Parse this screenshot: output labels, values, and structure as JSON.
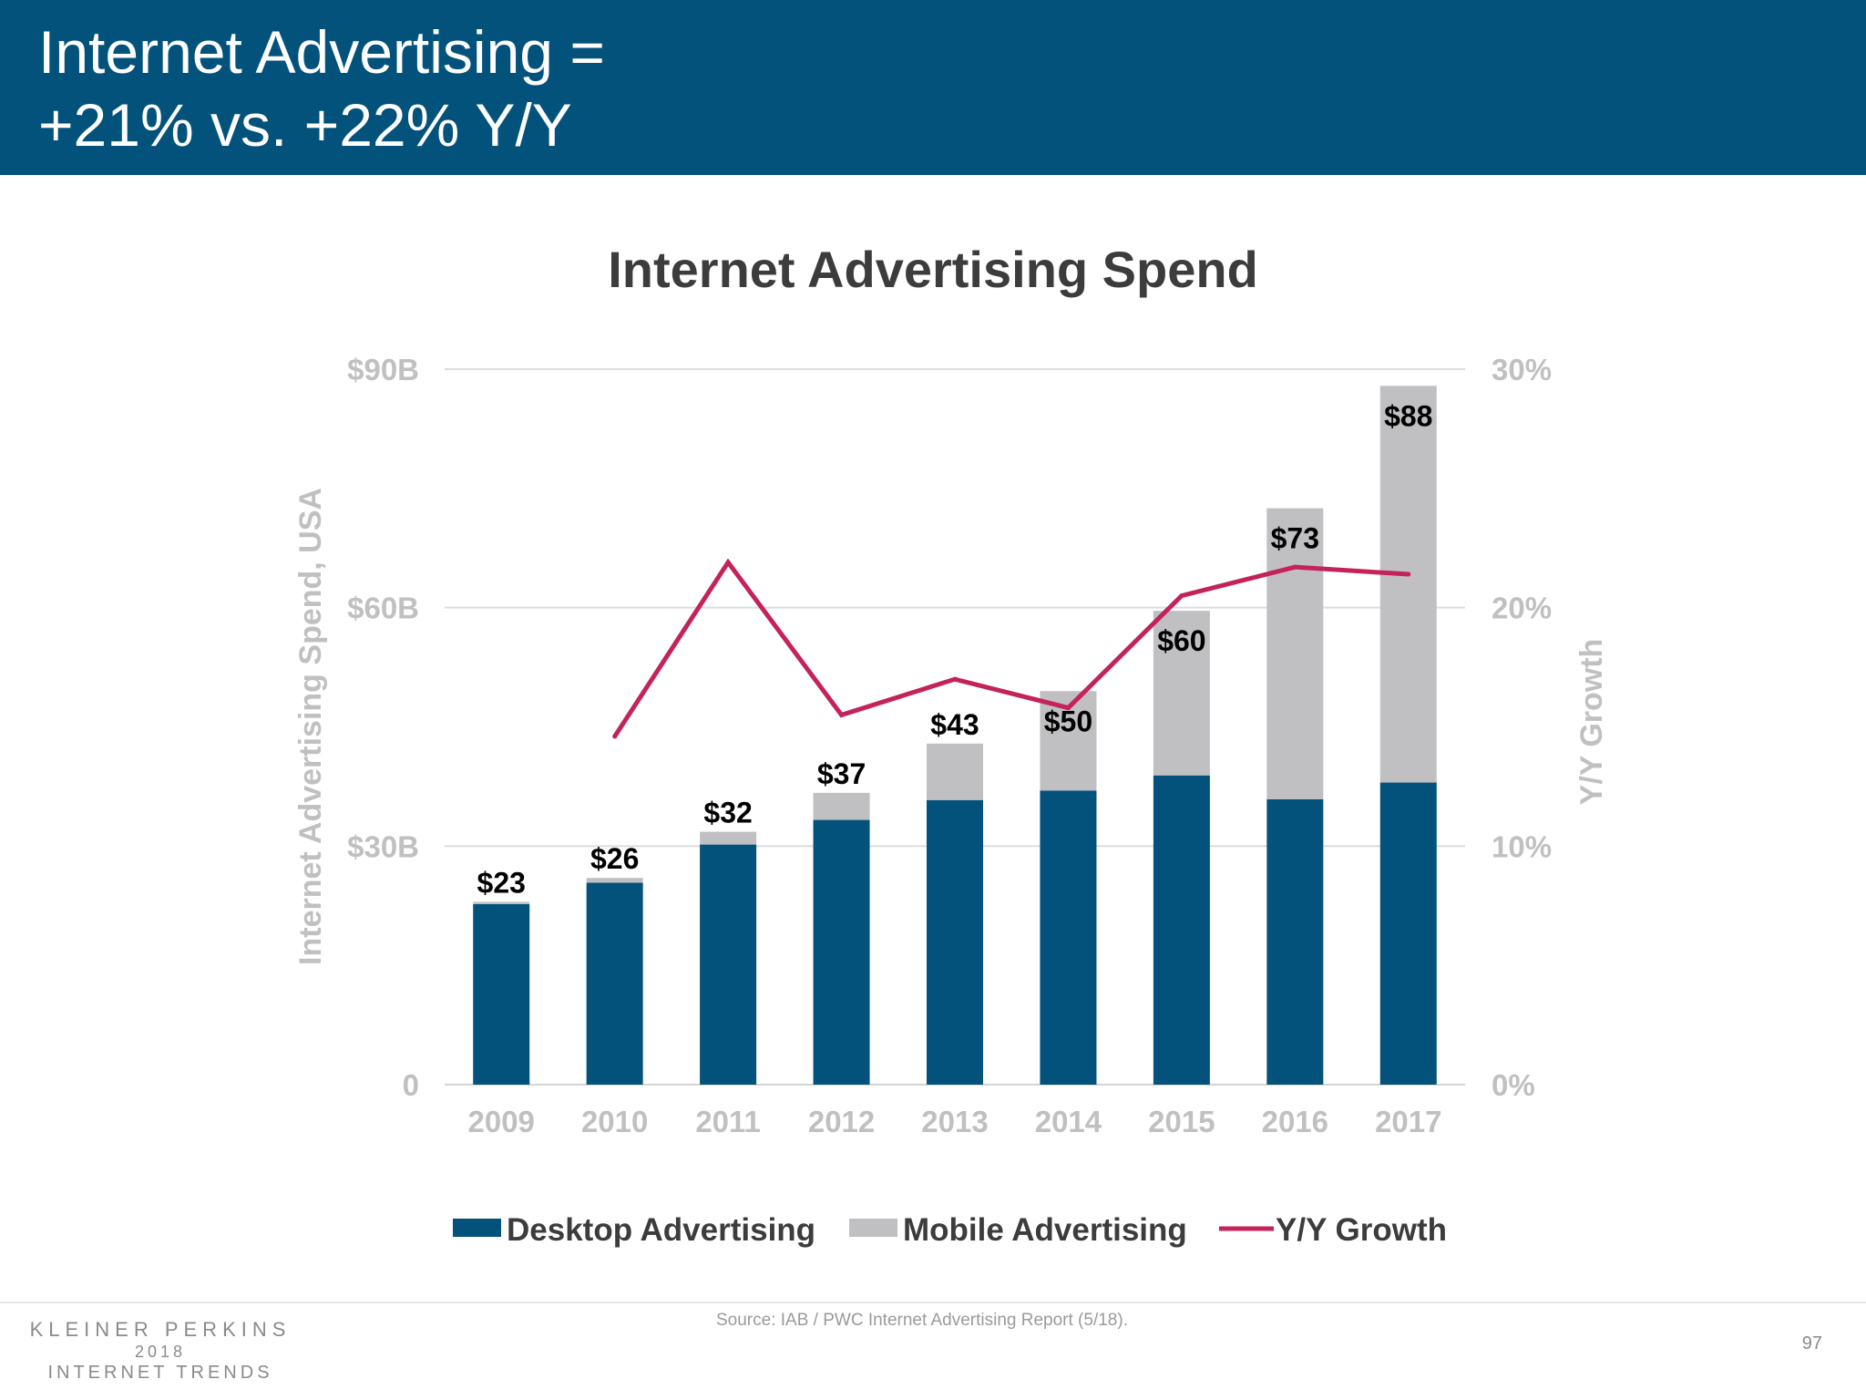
{
  "header": {
    "title_line1": "Internet Advertising =",
    "title_line2": "+21% vs. +22% Y/Y"
  },
  "colors": {
    "header_bg": "#02527c",
    "desktop": "#02527c",
    "mobile": "#c0bfc1",
    "growth_line": "#c4225a"
  },
  "chart_data": {
    "type": "bar",
    "stacked": true,
    "title": "Internet Advertising Spend",
    "categories": [
      "2009",
      "2010",
      "2011",
      "2012",
      "2013",
      "2014",
      "2015",
      "2016",
      "2017"
    ],
    "series": [
      {
        "name": "Desktop Advertising",
        "type": "bar",
        "axis": "left",
        "color": "#02527c",
        "values": [
          22.7,
          25.4,
          30.2,
          33.3,
          35.8,
          37.0,
          38.9,
          35.9,
          38.0
        ]
      },
      {
        "name": "Mobile Advertising",
        "type": "bar",
        "axis": "left",
        "color": "#c0bfc1",
        "values": [
          0.3,
          0.6,
          1.6,
          3.4,
          7.1,
          12.5,
          20.7,
          36.6,
          49.9
        ]
      },
      {
        "name": "Y/Y Growth",
        "type": "line",
        "axis": "right",
        "color": "#c4225a",
        "values": [
          null,
          14.6,
          21.9,
          15.5,
          17.0,
          15.8,
          20.5,
          21.7,
          21.4
        ]
      }
    ],
    "total_labels": [
      "$23",
      "$26",
      "$32",
      "$37",
      "$43",
      "$50",
      "$60",
      "$73",
      "$88"
    ],
    "y_left": {
      "label": "Internet Advertising Spend, USA",
      "range": [
        0,
        90
      ],
      "ticks": [
        0,
        30,
        60,
        90
      ],
      "tick_labels": [
        "0",
        "$30B",
        "$60B",
        "$90B"
      ]
    },
    "y_right": {
      "label": "Y/Y Growth",
      "range": [
        0,
        30
      ],
      "ticks": [
        0,
        10,
        20,
        30
      ],
      "tick_labels": [
        "0%",
        "10%",
        "20%",
        "30%"
      ]
    },
    "grid": true,
    "legend_position": "bottom"
  },
  "footer": {
    "logo_line1": "KLEINER PERKINS",
    "logo_line2": "2018",
    "logo_line3": "INTERNET TRENDS",
    "source": "Source: IAB / PWC Internet Advertising Report (5/18).",
    "page_number": "97"
  }
}
